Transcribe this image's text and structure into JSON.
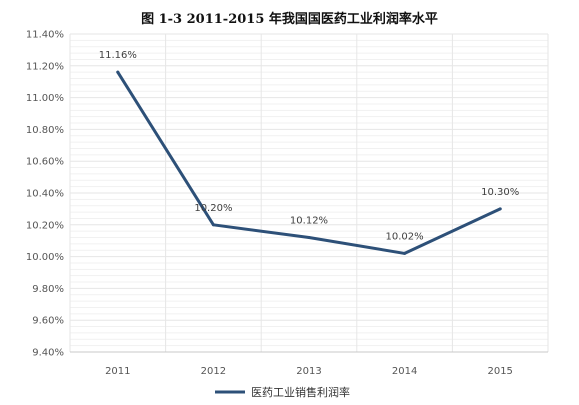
{
  "chart_data": {
    "type": "line",
    "title": "图 1-3 2011-2015 年我国国医药工业利润率水平",
    "xlabel": "",
    "ylabel": "",
    "categories": [
      "2011",
      "2012",
      "2013",
      "2014",
      "2015"
    ],
    "series": [
      {
        "name": "医药工业销售利润率",
        "values": [
          11.16,
          10.2,
          10.12,
          10.02,
          10.3
        ],
        "labels": [
          "11.16%",
          "10.20%",
          "10.12%",
          "10.02%",
          "10.30%"
        ]
      }
    ],
    "ylim": [
      9.4,
      11.4
    ],
    "yticks": [
      "9.40%",
      "9.60%",
      "9.80%",
      "10.00%",
      "10.20%",
      "10.40%",
      "10.60%",
      "10.80%",
      "11.00%",
      "11.20%",
      "11.40%"
    ],
    "grid": true,
    "legend": "bottom"
  },
  "colors": {
    "line": "#2d5078",
    "grid": "#e6e6e6",
    "axis": "#c8c8c8"
  }
}
